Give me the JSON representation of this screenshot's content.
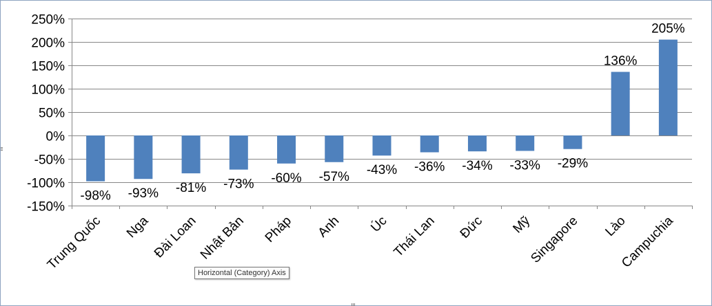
{
  "chart_data": {
    "type": "bar",
    "categories": [
      "Trung Quốc",
      "Nga",
      "Đài Loan",
      "Nhật Bản",
      "Pháp",
      "Anh",
      "Úc",
      "Thái Lan",
      "Đức",
      "Mỹ",
      "Singapore",
      "Lào",
      "Campuchia"
    ],
    "values": [
      -98,
      -93,
      -81,
      -73,
      -60,
      -57,
      -43,
      -36,
      -34,
      -33,
      -29,
      136,
      205
    ],
    "data_labels": [
      "-98%",
      "-93%",
      "-81%",
      "-73%",
      "-60%",
      "-57%",
      "-43%",
      "-36%",
      "-34%",
      "-33%",
      "-29%",
      "136%",
      "205%"
    ],
    "ylim": [
      -150,
      250
    ],
    "yticks": [
      -150,
      -100,
      -50,
      0,
      50,
      100,
      150,
      200,
      250
    ],
    "ytick_labels": [
      "-150%",
      "-100%",
      "-50%",
      "0%",
      "50%",
      "100%",
      "150%",
      "200%",
      "250%"
    ],
    "title": "",
    "xlabel": "",
    "ylabel": "",
    "grid": true,
    "legend": "none",
    "bar_color": "#4f81bd",
    "gridline_color": "#868686"
  },
  "tooltip": {
    "text": "Horizontal (Category) Axis"
  }
}
